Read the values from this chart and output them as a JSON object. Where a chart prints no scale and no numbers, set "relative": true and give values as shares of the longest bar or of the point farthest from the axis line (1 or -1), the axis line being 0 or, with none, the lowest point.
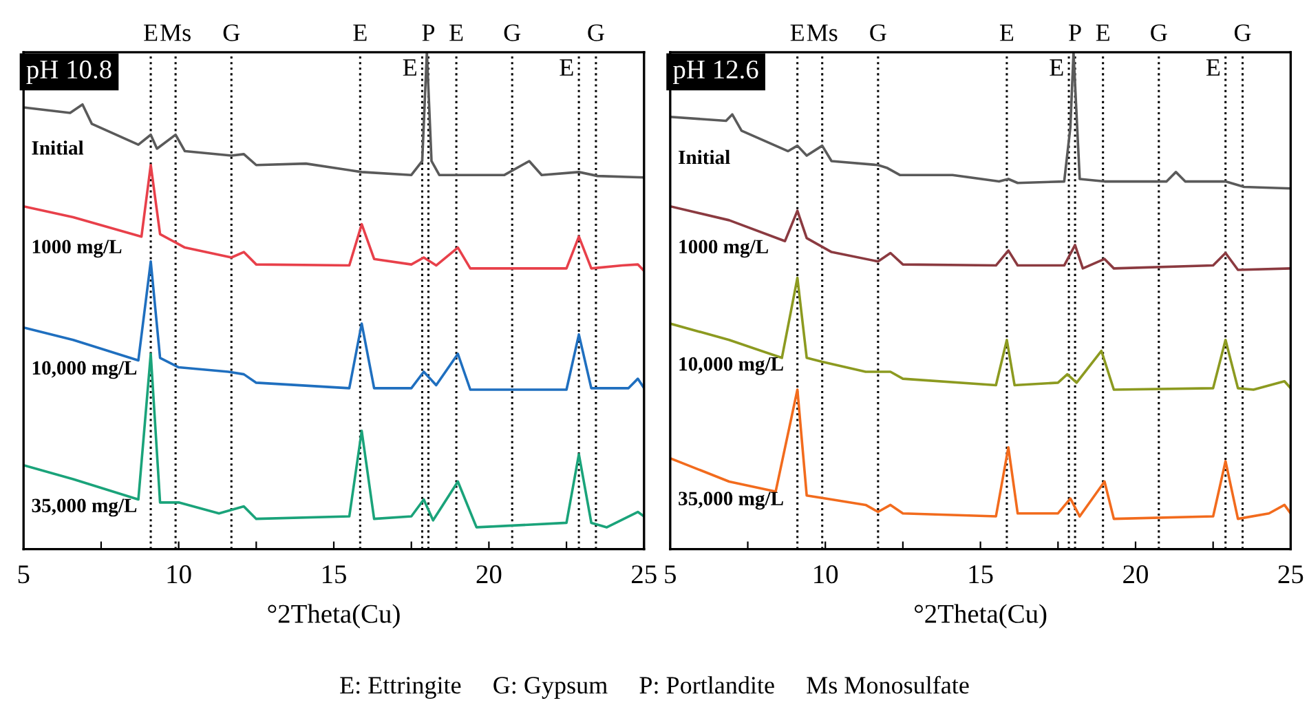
{
  "chart_data": [
    {
      "type": "line",
      "title": "pH 10.8",
      "xlabel": "°2Theta(Cu)",
      "relative": true,
      "xlim": [
        5,
        25
      ],
      "xticks": [
        5,
        {
          "value": 7.5,
          "label": null
        },
        10,
        {
          "value": 12.5,
          "label": null
        },
        15,
        {
          "value": 17.5,
          "label": null
        },
        20,
        {
          "value": 22.5,
          "label": null
        },
        25
      ],
      "grid": false,
      "legend": false,
      "tick_labels": "x",
      "line_style": "solid",
      "marker": "none",
      "ref_lines": [
        {
          "axis": "x",
          "value": 9.1,
          "label": "E"
        },
        {
          "axis": "x",
          "value": 9.9,
          "label": "Ms"
        },
        {
          "axis": "x",
          "value": 11.7,
          "label": "G"
        },
        {
          "axis": "x",
          "value": 15.85,
          "label": "E"
        },
        {
          "axis": "x",
          "value": 17.85,
          "label": "E"
        },
        {
          "axis": "x",
          "value": 18.05,
          "label": "P"
        },
        {
          "axis": "x",
          "value": 18.95,
          "label": "E"
        },
        {
          "axis": "x",
          "value": 20.75,
          "label": "G"
        },
        {
          "axis": "x",
          "value": 22.9,
          "label": "E"
        },
        {
          "axis": "x",
          "value": 23.45,
          "label": "G"
        }
      ],
      "annotations": [
        "E: Ettringite     G: Gypsum     P: Portlandite     Ms Monosulfate"
      ],
      "series": [
        {
          "name": "Initial",
          "color": "#5a5a5a",
          "x": [
            5.0,
            6.5,
            6.9,
            7.2,
            8.7,
            9.1,
            9.3,
            9.9,
            10.2,
            11.7,
            12.1,
            12.5,
            14.1,
            15.9,
            17.5,
            17.85,
            18.0,
            18.15,
            18.4,
            20.5,
            21.3,
            21.7,
            22.9,
            23.5,
            25.0
          ],
          "values": [
            0.889,
            0.878,
            0.895,
            0.856,
            0.814,
            0.834,
            0.806,
            0.834,
            0.801,
            0.792,
            0.795,
            0.773,
            0.776,
            0.759,
            0.753,
            0.781,
            1.0,
            0.781,
            0.753,
            0.753,
            0.781,
            0.753,
            0.759,
            0.751,
            0.748
          ]
        },
        {
          "name": "1000 mg/L",
          "color": "#e8404a",
          "x": [
            5.0,
            6.6,
            8.8,
            9.1,
            9.4,
            10.2,
            11.7,
            12.1,
            12.5,
            15.5,
            15.9,
            16.3,
            17.5,
            17.9,
            18.3,
            19.0,
            19.4,
            22.5,
            22.9,
            23.3,
            24.3,
            24.8,
            25.0
          ],
          "values": [
            0.69,
            0.668,
            0.629,
            0.773,
            0.634,
            0.607,
            0.587,
            0.598,
            0.573,
            0.571,
            0.654,
            0.584,
            0.573,
            0.587,
            0.571,
            0.607,
            0.565,
            0.565,
            0.629,
            0.565,
            0.571,
            0.573,
            0.56
          ]
        },
        {
          "name": "10,000 mg/L",
          "color": "#1f6fbf",
          "x": [
            5.0,
            6.6,
            8.7,
            9.1,
            9.4,
            10.0,
            11.6,
            12.1,
            12.5,
            15.5,
            15.9,
            16.3,
            17.5,
            17.9,
            18.3,
            19.0,
            19.4,
            22.5,
            22.9,
            23.3,
            24.5,
            24.8,
            25.0
          ],
          "values": [
            0.446,
            0.421,
            0.38,
            0.579,
            0.385,
            0.366,
            0.357,
            0.352,
            0.335,
            0.324,
            0.454,
            0.324,
            0.324,
            0.357,
            0.33,
            0.393,
            0.321,
            0.321,
            0.432,
            0.324,
            0.324,
            0.343,
            0.324
          ]
        },
        {
          "name": "35,000 mg/L",
          "color": "#1aa37a",
          "x": [
            5.0,
            6.6,
            8.7,
            9.1,
            9.4,
            10.0,
            11.3,
            12.1,
            12.5,
            15.5,
            15.9,
            16.3,
            17.5,
            17.9,
            18.2,
            19.0,
            19.6,
            22.5,
            22.9,
            23.3,
            23.8,
            24.8,
            25.0
          ],
          "values": [
            0.169,
            0.141,
            0.1,
            0.393,
            0.094,
            0.094,
            0.072,
            0.086,
            0.061,
            0.066,
            0.238,
            0.061,
            0.066,
            0.1,
            0.058,
            0.136,
            0.044,
            0.053,
            0.191,
            0.053,
            0.044,
            0.075,
            0.066
          ]
        }
      ]
    },
    {
      "type": "line",
      "title": "pH 12.6",
      "xlabel": "°2Theta(Cu)",
      "relative": true,
      "xlim": [
        5,
        25
      ],
      "xticks": [
        5,
        {
          "value": 7.5,
          "label": null
        },
        10,
        {
          "value": 12.5,
          "label": null
        },
        15,
        {
          "value": 17.5,
          "label": null
        },
        20,
        {
          "value": 22.5,
          "label": null
        },
        25
      ],
      "grid": false,
      "legend": false,
      "tick_labels": "x",
      "line_style": "solid",
      "marker": "none",
      "ref_lines": [
        {
          "axis": "x",
          "value": 9.1,
          "label": "E"
        },
        {
          "axis": "x",
          "value": 9.9,
          "label": "Ms"
        },
        {
          "axis": "x",
          "value": 11.7,
          "label": "G"
        },
        {
          "axis": "x",
          "value": 15.85,
          "label": "E"
        },
        {
          "axis": "x",
          "value": 17.85,
          "label": "E"
        },
        {
          "axis": "x",
          "value": 18.05,
          "label": "P"
        },
        {
          "axis": "x",
          "value": 18.95,
          "label": "E"
        },
        {
          "axis": "x",
          "value": 20.75,
          "label": "G"
        },
        {
          "axis": "x",
          "value": 22.9,
          "label": "E"
        },
        {
          "axis": "x",
          "value": 23.45,
          "label": "G"
        }
      ],
      "series": [
        {
          "name": "Initial",
          "color": "#5a5a5a",
          "x": [
            5.0,
            6.8,
            7.0,
            7.3,
            8.8,
            9.1,
            9.4,
            9.9,
            10.2,
            11.7,
            12.0,
            12.4,
            14.1,
            15.6,
            15.9,
            16.2,
            17.7,
            17.9,
            18.0,
            18.2,
            19.0,
            21.0,
            21.3,
            21.6,
            22.9,
            23.5,
            25.0
          ],
          "values": [
            0.87,
            0.862,
            0.875,
            0.842,
            0.801,
            0.812,
            0.792,
            0.812,
            0.781,
            0.773,
            0.767,
            0.753,
            0.753,
            0.74,
            0.745,
            0.737,
            0.74,
            0.85,
            1.0,
            0.745,
            0.74,
            0.74,
            0.759,
            0.74,
            0.74,
            0.729,
            0.726
          ]
        },
        {
          "name": "1000 mg/L",
          "color": "#8b3a40",
          "x": [
            5.0,
            6.9,
            8.7,
            9.1,
            9.4,
            10.2,
            11.7,
            12.1,
            12.5,
            15.5,
            15.9,
            16.2,
            17.7,
            18.05,
            18.3,
            19.0,
            19.3,
            22.5,
            22.9,
            23.3,
            25.0
          ],
          "values": [
            0.69,
            0.662,
            0.62,
            0.681,
            0.626,
            0.598,
            0.579,
            0.596,
            0.573,
            0.571,
            0.601,
            0.571,
            0.571,
            0.612,
            0.565,
            0.584,
            0.565,
            0.571,
            0.596,
            0.562,
            0.565
          ]
        },
        {
          "name": "10,000 mg/L",
          "color": "#8c9a20",
          "x": [
            5.0,
            6.9,
            8.6,
            9.1,
            9.4,
            9.9,
            11.3,
            12.1,
            12.5,
            15.5,
            15.85,
            16.1,
            17.5,
            17.8,
            18.1,
            18.9,
            19.3,
            22.5,
            22.9,
            23.3,
            23.8,
            24.8,
            25.0
          ],
          "values": [
            0.454,
            0.421,
            0.385,
            0.546,
            0.385,
            0.377,
            0.357,
            0.357,
            0.343,
            0.33,
            0.421,
            0.33,
            0.335,
            0.352,
            0.335,
            0.399,
            0.321,
            0.324,
            0.421,
            0.324,
            0.321,
            0.338,
            0.324
          ]
        },
        {
          "name": "35,000 mg/L",
          "color": "#f26b1d",
          "x": [
            5.0,
            6.9,
            8.4,
            9.1,
            9.4,
            10.0,
            11.3,
            11.7,
            12.1,
            12.5,
            15.5,
            15.9,
            16.2,
            17.5,
            17.9,
            18.2,
            19.0,
            19.3,
            22.5,
            22.9,
            23.3,
            24.3,
            24.8,
            25.0
          ],
          "values": [
            0.183,
            0.136,
            0.116,
            0.321,
            0.108,
            0.102,
            0.089,
            0.075,
            0.089,
            0.072,
            0.066,
            0.205,
            0.072,
            0.072,
            0.102,
            0.066,
            0.136,
            0.061,
            0.066,
            0.177,
            0.061,
            0.072,
            0.089,
            0.072
          ]
        }
      ]
    }
  ]
}
